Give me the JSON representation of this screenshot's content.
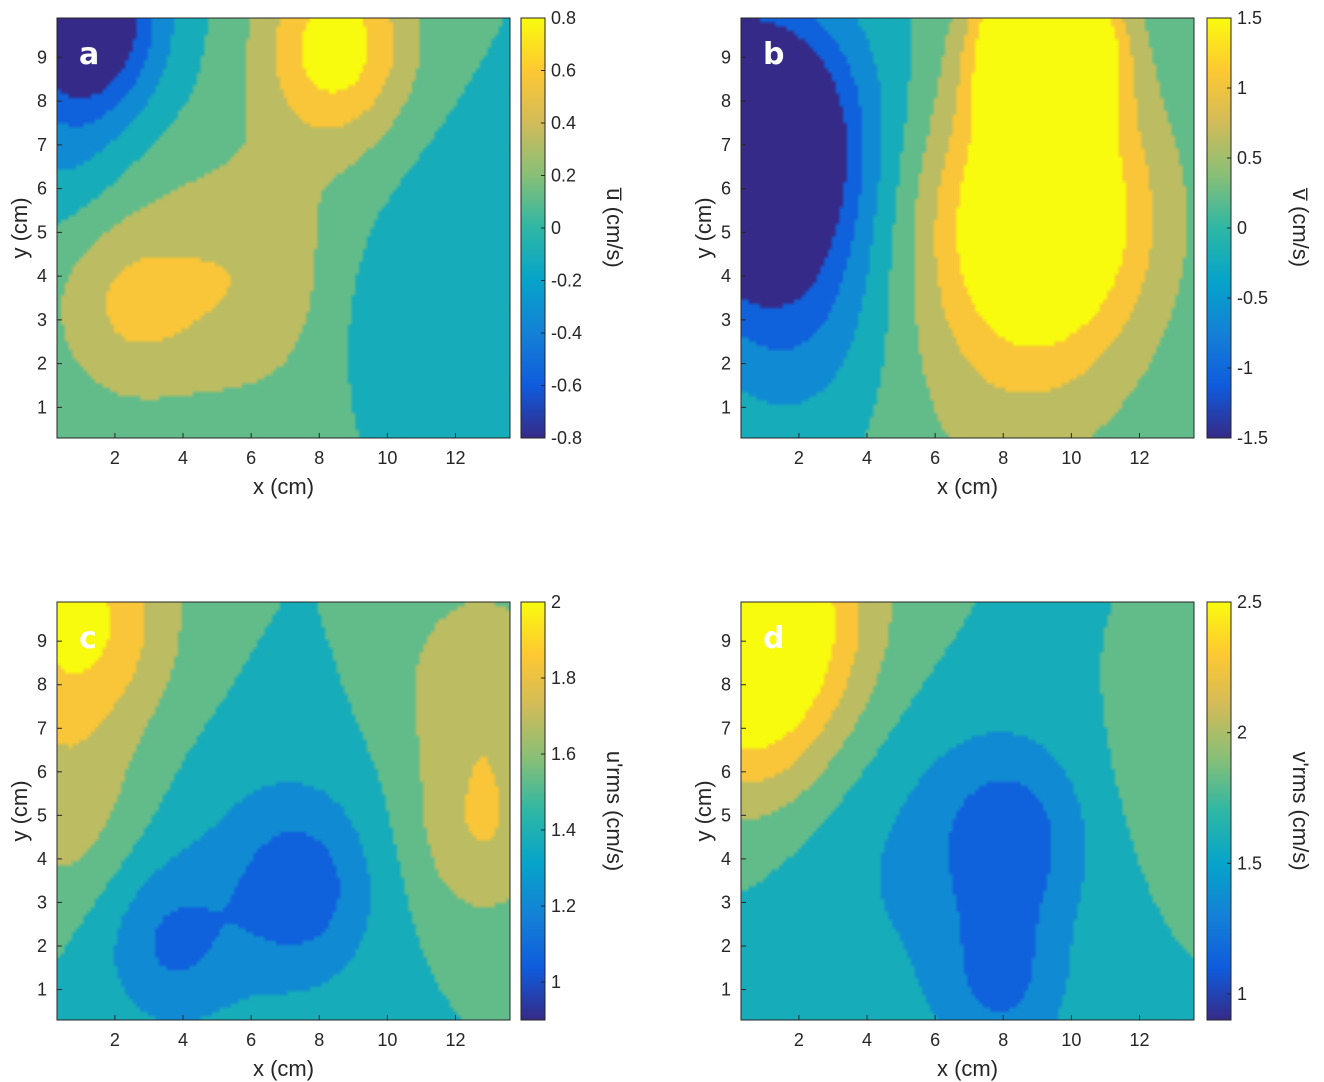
{
  "chart_data": [
    {
      "type": "heatmap",
      "panel_label": "a",
      "xlabel": "x (cm)",
      "ylabel": "y (cm)",
      "xlim": [
        0.3,
        13.6
      ],
      "ylim": [
        0.3,
        9.9
      ],
      "x_ticks": [
        2,
        4,
        6,
        8,
        10,
        12
      ],
      "y_ticks": [
        1,
        2,
        3,
        4,
        5,
        6,
        7,
        8,
        9
      ],
      "colorbar": {
        "label": "u̅ (cm/s)",
        "range": [
          -0.8,
          0.8
        ],
        "ticks": [
          "0.8",
          "0.6",
          "0.4",
          "0.2",
          "0",
          "-0.2",
          "-0.4",
          "-0.6",
          "-0.8"
        ]
      },
      "blobs": [
        {
          "x": 8.5,
          "y": 9.3,
          "v": 0.9,
          "s": 1.6
        },
        {
          "x": 5.8,
          "y": 4.0,
          "v": 0.45,
          "s": 2.2
        },
        {
          "x": 2.2,
          "y": 3.3,
          "v": 0.45,
          "s": 1.6
        },
        {
          "x": 10.5,
          "y": 3.0,
          "v": -0.25,
          "s": 1.5
        },
        {
          "x": 12.0,
          "y": 6.0,
          "v": -0.1,
          "s": 1.8
        },
        {
          "x": 1.0,
          "y": 9.8,
          "v": -1.3,
          "s": 1.5
        },
        {
          "x": 0.5,
          "y": 6.5,
          "v": -0.2,
          "s": 1.2
        }
      ]
    },
    {
      "type": "heatmap",
      "panel_label": "b",
      "xlabel": "x (cm)",
      "ylabel": "y (cm)",
      "xlim": [
        0.3,
        13.6
      ],
      "ylim": [
        0.3,
        9.9
      ],
      "x_ticks": [
        2,
        4,
        6,
        8,
        10,
        12
      ],
      "y_ticks": [
        1,
        2,
        3,
        4,
        5,
        6,
        7,
        8,
        9
      ],
      "colorbar": {
        "label": "v̅ (cm/s)",
        "range": [
          -1.5,
          1.5
        ],
        "ticks": [
          "1.5",
          "1",
          "0.5",
          "0",
          "-0.5",
          "-1",
          "-1.5"
        ]
      },
      "blobs": [
        {
          "x": 9.3,
          "y": 9.3,
          "v": 2.0,
          "s": 1.3
        },
        {
          "x": 9.2,
          "y": 5.5,
          "v": 1.2,
          "s": 2.3
        },
        {
          "x": 8.0,
          "y": 2.0,
          "v": 0.3,
          "s": 3.0
        },
        {
          "x": 0.5,
          "y": 7.0,
          "v": -1.8,
          "s": 2.2
        },
        {
          "x": 2.0,
          "y": 3.0,
          "v": -0.4,
          "s": 2.0
        },
        {
          "x": 13.5,
          "y": 5.0,
          "v": 0.0,
          "s": 1.0
        }
      ]
    },
    {
      "type": "heatmap",
      "panel_label": "c",
      "xlabel": "x (cm)",
      "ylabel": "y (cm)",
      "xlim": [
        0.3,
        13.6
      ],
      "ylim": [
        0.3,
        9.9
      ],
      "x_ticks": [
        2,
        4,
        6,
        8,
        10,
        12
      ],
      "y_ticks": [
        1,
        2,
        3,
        4,
        5,
        6,
        7,
        8,
        9
      ],
      "colorbar": {
        "label": "u'rms (cm/s)",
        "range": [
          0.9,
          2.0
        ],
        "ticks": [
          "2",
          "1.8",
          "1.6",
          "1.4",
          "1.2",
          "1"
        ]
      },
      "blobs": [
        {
          "x": 0.8,
          "y": 9.5,
          "v": 0.85,
          "s": 2.0
        },
        {
          "x": 0.5,
          "y": 5.0,
          "v": 0.35,
          "s": 1.6
        },
        {
          "x": 12.8,
          "y": 8.0,
          "v": 0.45,
          "s": 1.8
        },
        {
          "x": 12.8,
          "y": 4.5,
          "v": 0.45,
          "s": 1.5
        },
        {
          "x": 3.5,
          "y": 2.0,
          "v": -0.45,
          "s": 1.4
        },
        {
          "x": 7.5,
          "y": 3.3,
          "v": -0.45,
          "s": 1.4
        },
        {
          "x": 6.5,
          "y": 3.5,
          "v": -0.25,
          "s": 2.5
        }
      ]
    },
    {
      "type": "heatmap",
      "panel_label": "d",
      "xlabel": "x (cm)",
      "ylabel": "y (cm)",
      "xlim": [
        0.3,
        13.6
      ],
      "ylim": [
        0.3,
        9.9
      ],
      "x_ticks": [
        2,
        4,
        6,
        8,
        10,
        12
      ],
      "y_ticks": [
        1,
        2,
        3,
        4,
        5,
        6,
        7,
        8,
        9
      ],
      "colorbar": {
        "label": "v'rms (cm/s)",
        "range": [
          0.9,
          2.5
        ],
        "ticks": [
          "2.5",
          "2",
          "1.5",
          "1"
        ]
      },
      "blobs": [
        {
          "x": 1.0,
          "y": 9.6,
          "v": 1.1,
          "s": 2.2
        },
        {
          "x": 0.5,
          "y": 7.0,
          "v": 0.4,
          "s": 1.8
        },
        {
          "x": 8.3,
          "y": 4.5,
          "v": -0.55,
          "s": 1.6
        },
        {
          "x": 8.0,
          "y": 1.0,
          "v": -0.45,
          "s": 1.4
        },
        {
          "x": 5.0,
          "y": 4.0,
          "v": -0.25,
          "s": 2.8
        },
        {
          "x": 13.0,
          "y": 6.0,
          "v": 0.15,
          "s": 1.5
        },
        {
          "x": 2.0,
          "y": 2.5,
          "v": 0.0,
          "s": 2.0
        }
      ]
    }
  ],
  "colormap": [
    "#352a87",
    "#0f5cdd",
    "#1481d6",
    "#06a4ca",
    "#2eb7a4",
    "#87bf77",
    "#d1bb59",
    "#fec832",
    "#f9fb0e"
  ]
}
